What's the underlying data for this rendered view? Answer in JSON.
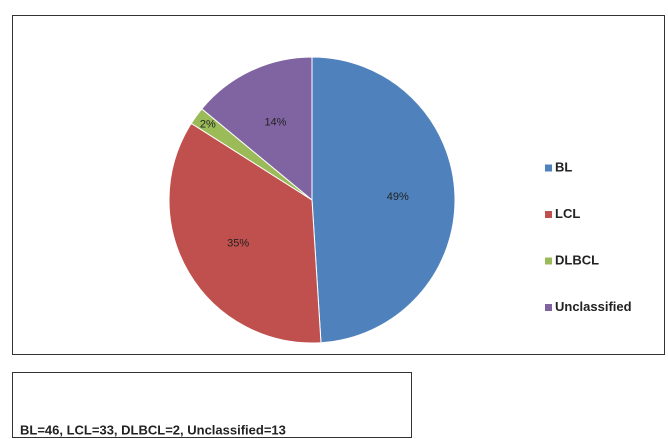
{
  "chart_data": {
    "type": "pie",
    "categories": [
      "BL",
      "LCL",
      "DLBCL",
      "Unclassified"
    ],
    "values": [
      49,
      35,
      2,
      14
    ],
    "value_labels": [
      "49%",
      "35%",
      "2%",
      "14%"
    ],
    "colors": [
      "#4f81bd",
      "#c0504d",
      "#9bbb59",
      "#8064a2"
    ],
    "legend": "right",
    "footnote": "BL=46, LCL=33, DLBCL=2, Unclassified=13"
  }
}
